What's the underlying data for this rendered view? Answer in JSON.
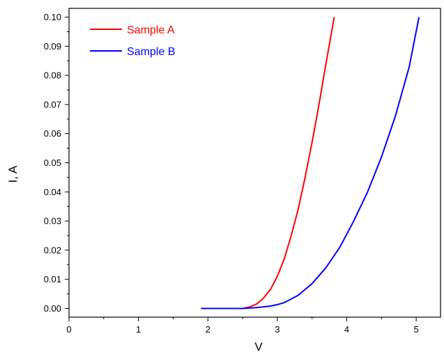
{
  "chart_data": {
    "type": "line",
    "title": "",
    "xlabel": "V",
    "ylabel": "I, A",
    "xlim": [
      0,
      5.35
    ],
    "ylim": [
      -0.003,
      0.103
    ],
    "x_ticks": [
      "0",
      "1",
      "2",
      "3",
      "4",
      "5"
    ],
    "y_ticks": [
      "0.00",
      "0.01",
      "0.02",
      "0.03",
      "0.04",
      "0.05",
      "0.06",
      "0.07",
      "0.08",
      "0.09",
      "0.10"
    ],
    "grid": false,
    "legend": "top-left",
    "series": [
      {
        "name": "Sample A",
        "color": "#ff0000",
        "x": [
          1.9,
          2.2,
          2.5,
          2.6,
          2.7,
          2.8,
          2.9,
          3.0,
          3.1,
          3.2,
          3.3,
          3.4,
          3.5,
          3.6,
          3.7,
          3.82
        ],
        "y": [
          0.0,
          0.0,
          0.0,
          0.0005,
          0.0015,
          0.0035,
          0.0065,
          0.011,
          0.017,
          0.025,
          0.034,
          0.045,
          0.057,
          0.07,
          0.084,
          0.1
        ]
      },
      {
        "name": "Sample B",
        "color": "#0000ff",
        "x": [
          1.9,
          2.2,
          2.5,
          2.7,
          2.9,
          3.0,
          3.1,
          3.3,
          3.5,
          3.7,
          3.9,
          4.1,
          4.3,
          4.5,
          4.7,
          4.9,
          5.04
        ],
        "y": [
          0.0,
          0.0,
          0.0,
          0.0003,
          0.0008,
          0.0013,
          0.002,
          0.0045,
          0.0085,
          0.014,
          0.021,
          0.03,
          0.04,
          0.052,
          0.066,
          0.083,
          0.1
        ]
      }
    ]
  }
}
